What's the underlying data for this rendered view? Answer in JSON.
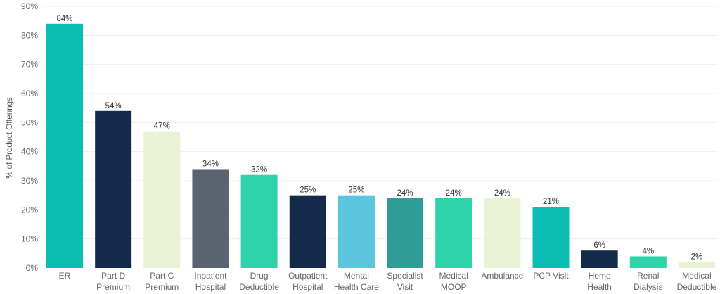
{
  "chart_data": {
    "type": "bar",
    "title": "",
    "xlabel": "",
    "ylabel": "% of Product Offerings",
    "ylim": [
      0,
      90
    ],
    "yticks": [
      0,
      10,
      20,
      30,
      40,
      50,
      60,
      70,
      80,
      90
    ],
    "ytick_labels": [
      "0%",
      "10%",
      "20%",
      "30%",
      "40%",
      "50%",
      "60%",
      "70%",
      "80%",
      "90%"
    ],
    "grid": true,
    "legend": "none",
    "categories": [
      [
        "ER"
      ],
      [
        "Part D",
        "Premium"
      ],
      [
        "Part C",
        "Premium"
      ],
      [
        "Inpatient",
        "Hospital"
      ],
      [
        "Drug",
        "Deductible"
      ],
      [
        "Outpatient",
        "Hospital"
      ],
      [
        "Mental",
        "Health Care"
      ],
      [
        "Specialist",
        "Visit"
      ],
      [
        "Medical",
        "MOOP"
      ],
      [
        "Ambulance"
      ],
      [
        "PCP Visit"
      ],
      [
        "Home",
        "Health"
      ],
      [
        "Renal",
        "Dialysis"
      ],
      [
        "Medical",
        "Deductible"
      ]
    ],
    "values": [
      84,
      54,
      47,
      34,
      32,
      25,
      25,
      24,
      24,
      24,
      21,
      6,
      4,
      2
    ],
    "value_labels": [
      "84%",
      "54%",
      "47%",
      "34%",
      "32%",
      "25%",
      "25%",
      "24%",
      "24%",
      "24%",
      "21%",
      "6%",
      "4%",
      "2%"
    ],
    "colors": [
      "#0bbdb2",
      "#132a4b",
      "#e9f2d4",
      "#5a6470",
      "#2fd3aa",
      "#132a4b",
      "#5bc6dd",
      "#2e9d96",
      "#2fd3aa",
      "#e9f2d4",
      "#0bbdb2",
      "#132a4b",
      "#2fd3aa",
      "#e9f2d4"
    ]
  }
}
